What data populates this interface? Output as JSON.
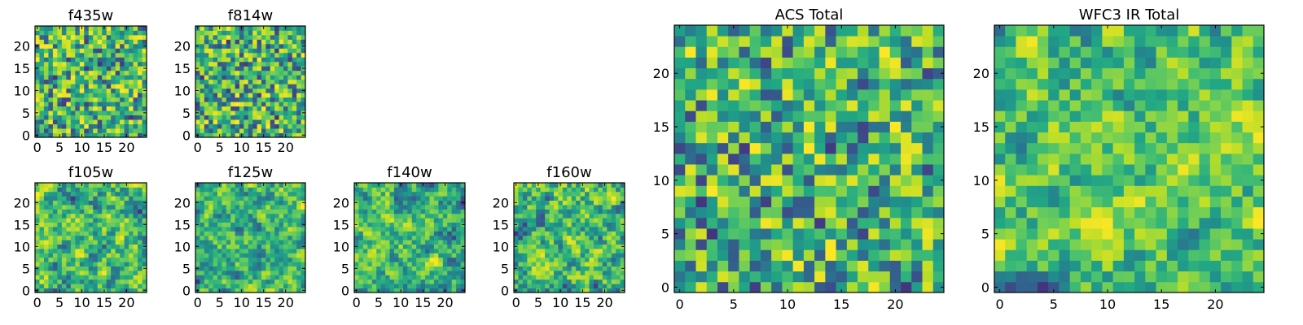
{
  "chart_data": [
    {
      "type": "heatmap",
      "title": "f435w",
      "xticks": [
        "0",
        "5",
        "10",
        "15",
        "20"
      ],
      "yticks": [
        "0",
        "5",
        "10",
        "15",
        "20"
      ],
      "xlim": [
        0,
        25
      ],
      "ylim": [
        0,
        25
      ],
      "grid": false,
      "colormap": "viridis",
      "noise_seed": 11,
      "smooth": 0
    },
    {
      "type": "heatmap",
      "title": "f814w",
      "xticks": [
        "0",
        "5",
        "10",
        "15",
        "20"
      ],
      "yticks": [
        "0",
        "5",
        "10",
        "15",
        "20"
      ],
      "xlim": [
        0,
        25
      ],
      "ylim": [
        0,
        25
      ],
      "grid": false,
      "colormap": "viridis",
      "noise_seed": 23,
      "smooth": 0
    },
    {
      "type": "heatmap",
      "title": "f105w",
      "xticks": [
        "0",
        "5",
        "10",
        "15",
        "20"
      ],
      "yticks": [
        "0",
        "5",
        "10",
        "15",
        "20"
      ],
      "xlim": [
        0,
        25
      ],
      "ylim": [
        0,
        25
      ],
      "grid": false,
      "colormap": "viridis",
      "noise_seed": 37,
      "smooth": 1
    },
    {
      "type": "heatmap",
      "title": "f125w",
      "xticks": [
        "0",
        "5",
        "10",
        "15",
        "20"
      ],
      "yticks": [
        "0",
        "5",
        "10",
        "15",
        "20"
      ],
      "xlim": [
        0,
        25
      ],
      "ylim": [
        0,
        25
      ],
      "grid": false,
      "colormap": "viridis",
      "noise_seed": 41,
      "smooth": 1
    },
    {
      "type": "heatmap",
      "title": "f140w",
      "xticks": [
        "0",
        "5",
        "10",
        "15",
        "20"
      ],
      "yticks": [
        "0",
        "5",
        "10",
        "15",
        "20"
      ],
      "xlim": [
        0,
        25
      ],
      "ylim": [
        0,
        25
      ],
      "grid": false,
      "colormap": "viridis",
      "noise_seed": 53,
      "smooth": 1
    },
    {
      "type": "heatmap",
      "title": "f160w",
      "xticks": [
        "0",
        "5",
        "10",
        "15",
        "20"
      ],
      "yticks": [
        "0",
        "5",
        "10",
        "15",
        "20"
      ],
      "xlim": [
        0,
        25
      ],
      "ylim": [
        0,
        25
      ],
      "grid": false,
      "colormap": "viridis",
      "noise_seed": 67,
      "smooth": 1
    },
    {
      "type": "heatmap",
      "title": "ACS Total",
      "xticks": [
        "0",
        "5",
        "10",
        "15",
        "20"
      ],
      "yticks": [
        "0",
        "5",
        "10",
        "15",
        "20"
      ],
      "xlim": [
        0,
        25
      ],
      "ylim": [
        0,
        25
      ],
      "grid": false,
      "colormap": "viridis",
      "noise_seed": 79,
      "smooth": 0
    },
    {
      "type": "heatmap",
      "title": "WFC3 IR Total",
      "xticks": [
        "0",
        "5",
        "10",
        "15",
        "20"
      ],
      "yticks": [
        "0",
        "5",
        "10",
        "15",
        "20"
      ],
      "xlim": [
        0,
        25
      ],
      "ylim": [
        0,
        25
      ],
      "grid": false,
      "colormap": "viridis",
      "noise_seed": 97,
      "smooth": 1
    }
  ]
}
